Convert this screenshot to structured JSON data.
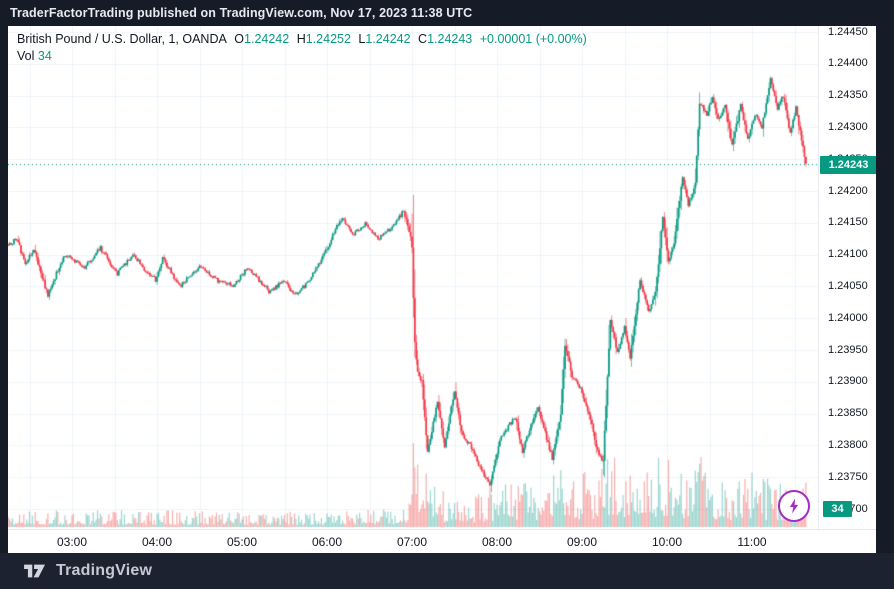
{
  "header": {
    "text": "TraderFactorTrading published on TradingView.com, Nov 17, 2023 11:38 UTC"
  },
  "legend": {
    "symbol": "British Pound / U.S. Dollar, 1, OANDA",
    "ohlc": [
      {
        "k": "O",
        "v": "1.24242"
      },
      {
        "k": "H",
        "v": "1.24252"
      },
      {
        "k": "L",
        "v": "1.24242"
      },
      {
        "k": "C",
        "v": "1.24243"
      }
    ],
    "change": "+0.00001 (+0.00%)",
    "vol_label": "Vol",
    "vol_value": "34"
  },
  "price_axis": {
    "ticks": [
      "1.24450",
      "1.24400",
      "1.24350",
      "1.24300",
      "1.24250",
      "1.24200",
      "1.24150",
      "1.24100",
      "1.24050",
      "1.24000",
      "1.23950",
      "1.23900",
      "1.23850",
      "1.23800",
      "1.23750",
      "1.23700"
    ],
    "current_price_label": "1.24243",
    "volume_badge": "34"
  },
  "time_axis": {
    "labels": [
      "03:00",
      "04:00",
      "05:00",
      "06:00",
      "07:00",
      "08:00",
      "09:00",
      "10:00",
      "11:00"
    ]
  },
  "footer": {
    "brand": "TradingView"
  },
  "colors": {
    "bg_dark": "#161b28",
    "footer_bg": "#1c2230",
    "chart_bg": "#ffffff",
    "grid": "#f0f3fa",
    "text_dark": "#131722",
    "up": "#089981",
    "down": "#f23645",
    "vol_up": "rgba(42,166,154,0.45)",
    "vol_down": "rgba(239,83,80,0.45)",
    "badge": "#089981",
    "lightning": "#a32cc4"
  },
  "chart_data": {
    "type": "candlestick+volume",
    "title": "British Pound / U.S. Dollar",
    "interval": "1",
    "exchange": "OANDA",
    "session_start": "02:15",
    "session_end": "11:38",
    "current_bar": {
      "open": 1.24242,
      "high": 1.24252,
      "low": 1.24242,
      "close": 1.24243,
      "volume": 34,
      "change": 1e-05,
      "change_pct": 0.0
    },
    "current_price": 1.24243,
    "day_low": 1.23735,
    "day_high": 1.24376,
    "y_axis": {
      "min": 1.23665,
      "max": 1.2446,
      "tick_step": 0.0005
    },
    "x_axis": {
      "hour_labels": [
        "03:00",
        "04:00",
        "05:00",
        "06:00",
        "07:00",
        "08:00",
        "09:00",
        "10:00",
        "11:00"
      ],
      "gridline_interval_min": 30
    },
    "price_path_anchors": [
      [
        0,
        1.24115
      ],
      [
        6,
        1.24125
      ],
      [
        12,
        1.24085
      ],
      [
        18,
        1.2411
      ],
      [
        28,
        1.24035
      ],
      [
        34,
        1.2407
      ],
      [
        40,
        1.241
      ],
      [
        54,
        1.2408
      ],
      [
        65,
        1.2411
      ],
      [
        77,
        1.2407
      ],
      [
        88,
        1.241
      ],
      [
        97,
        1.24075
      ],
      [
        104,
        1.2406
      ],
      [
        109,
        1.24095
      ],
      [
        121,
        1.2405
      ],
      [
        135,
        1.2408
      ],
      [
        147,
        1.2406
      ],
      [
        159,
        1.2405
      ],
      [
        169,
        1.2408
      ],
      [
        185,
        1.2404
      ],
      [
        194,
        1.2406
      ],
      [
        202,
        1.24035
      ],
      [
        213,
        1.2406
      ],
      [
        224,
        1.24105
      ],
      [
        231,
        1.2414
      ],
      [
        236,
        1.2416
      ],
      [
        243,
        1.2413
      ],
      [
        252,
        1.24148
      ],
      [
        261,
        1.24125
      ],
      [
        270,
        1.24142
      ],
      [
        279,
        1.24168
      ],
      [
        284,
        1.2413
      ],
      [
        285,
        1.2411
      ],
      [
        287,
        1.2396
      ],
      [
        289,
        1.23915
      ],
      [
        292,
        1.239
      ],
      [
        296,
        1.2379
      ],
      [
        303,
        1.2387
      ],
      [
        308,
        1.238
      ],
      [
        315,
        1.23885
      ],
      [
        320,
        1.2382
      ],
      [
        326,
        1.238
      ],
      [
        332,
        1.2377
      ],
      [
        340,
        1.23735
      ],
      [
        347,
        1.2381
      ],
      [
        353,
        1.2383
      ],
      [
        358,
        1.23845
      ],
      [
        363,
        1.2379
      ],
      [
        368,
        1.23825
      ],
      [
        374,
        1.2386
      ],
      [
        379,
        1.2382
      ],
      [
        384,
        1.2378
      ],
      [
        390,
        1.2385
      ],
      [
        393,
        1.2396
      ],
      [
        398,
        1.2391
      ],
      [
        404,
        1.2389
      ],
      [
        411,
        1.2384
      ],
      [
        416,
        1.2379
      ],
      [
        420,
        1.23775
      ],
      [
        425,
        1.24
      ],
      [
        430,
        1.23945
      ],
      [
        435,
        1.23985
      ],
      [
        439,
        1.2394
      ],
      [
        446,
        1.2406
      ],
      [
        452,
        1.2401
      ],
      [
        457,
        1.2404
      ],
      [
        462,
        1.2416
      ],
      [
        466,
        1.2409
      ],
      [
        470,
        1.2412
      ],
      [
        476,
        1.2422
      ],
      [
        480,
        1.2418
      ],
      [
        485,
        1.2421
      ],
      [
        488,
        1.2434
      ],
      [
        493,
        1.2432
      ],
      [
        497,
        1.2435
      ],
      [
        501,
        1.2431
      ],
      [
        506,
        1.24335
      ],
      [
        511,
        1.2427
      ],
      [
        517,
        1.24335
      ],
      [
        522,
        1.2428
      ],
      [
        527,
        1.2432
      ],
      [
        532,
        1.243
      ],
      [
        538,
        1.24375
      ],
      [
        543,
        1.2433
      ],
      [
        547,
        1.2435
      ],
      [
        552,
        1.2429
      ],
      [
        556,
        1.2433
      ],
      [
        560,
        1.2428
      ],
      [
        563,
        1.24243
      ]
    ],
    "volume_profile_anchors": [
      [
        0,
        9
      ],
      [
        100,
        9
      ],
      [
        230,
        8
      ],
      [
        270,
        10
      ],
      [
        284,
        14
      ],
      [
        287,
        62
      ],
      [
        290,
        45
      ],
      [
        295,
        30
      ],
      [
        305,
        20
      ],
      [
        320,
        16
      ],
      [
        335,
        20
      ],
      [
        350,
        26
      ],
      [
        365,
        30
      ],
      [
        380,
        26
      ],
      [
        393,
        40
      ],
      [
        405,
        30
      ],
      [
        418,
        34
      ],
      [
        425,
        48
      ],
      [
        438,
        32
      ],
      [
        450,
        34
      ],
      [
        462,
        40
      ],
      [
        475,
        30
      ],
      [
        488,
        40
      ],
      [
        500,
        30
      ],
      [
        512,
        26
      ],
      [
        525,
        32
      ],
      [
        540,
        26
      ],
      [
        550,
        22
      ],
      [
        558,
        18
      ],
      [
        562,
        50
      ],
      [
        563,
        55
      ]
    ]
  }
}
